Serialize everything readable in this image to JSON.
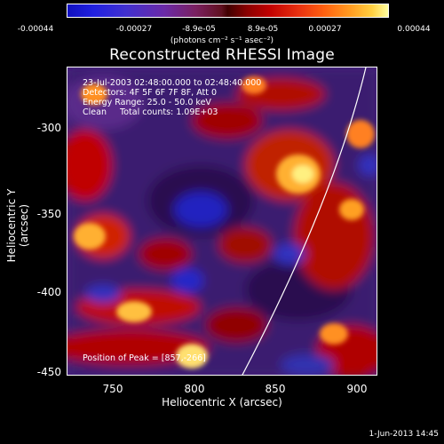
{
  "colorbar": {
    "ticks": [
      "-0.00044",
      "-0.00027",
      "-8.9e-05",
      "8.9e-05",
      "0.00027",
      "0.00044"
    ],
    "units": "(photons cm⁻² s⁻¹ asec⁻²)"
  },
  "title": "Reconstructed RHESSI Image",
  "info": {
    "line1": "23-Jul-2003 02:48:00.000 to 02:48:40.000",
    "line2": "Detectors: 4F 5F 6F 7F 8F, Att 0",
    "line3": "Energy Range: 25.0 - 50.0 keV",
    "line4": "Clean     Total counts: 1.09E+03",
    "peak": "Position of Peak = [857,-266]"
  },
  "axes": {
    "xlabel": "Heliocentric X (arcsec)",
    "ylabel": "Heliocentric Y (arcsec)",
    "xticks": [
      "750",
      "800",
      "850",
      "900"
    ],
    "yticks": [
      "-300",
      "-350",
      "-400",
      "-450"
    ]
  },
  "timestamp": "1-Jun-2013 14:45",
  "colors": {
    "background": "#000000",
    "foreground": "#ffffff"
  }
}
